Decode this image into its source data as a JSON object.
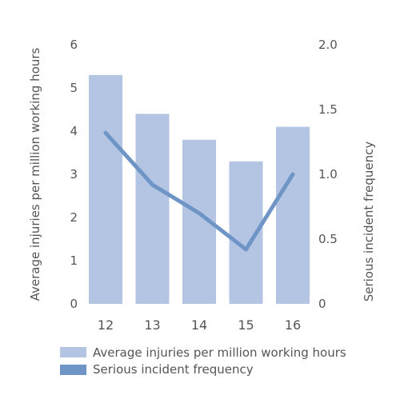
{
  "chart_data": {
    "type": "bar",
    "categories": [
      "12",
      "13",
      "14",
      "15",
      "16"
    ],
    "series": [
      {
        "name": "Average injuries per million working hours",
        "type": "bar",
        "axis": "left",
        "values": [
          5.3,
          4.4,
          3.8,
          3.3,
          4.1
        ]
      },
      {
        "name": "Serious incident frequency",
        "type": "line",
        "axis": "right",
        "values": [
          1.32,
          0.92,
          0.7,
          0.42,
          1.0
        ]
      }
    ],
    "ylabel": "Average injuries per million working hours",
    "ylim": [
      0,
      6
    ],
    "yticks": [
      "0",
      "1",
      "2",
      "3",
      "4",
      "5",
      "6"
    ],
    "y2label": "Serious incident frequency",
    "y2lim": [
      0,
      2
    ],
    "y2ticks": [
      "0",
      "0.5",
      "1.0",
      "1.5",
      "2.0"
    ],
    "legend_position": "bottom",
    "grid": false,
    "colors": {
      "bar": "#b4c5e4",
      "line": "#6f95c7",
      "text": "#555555"
    }
  }
}
